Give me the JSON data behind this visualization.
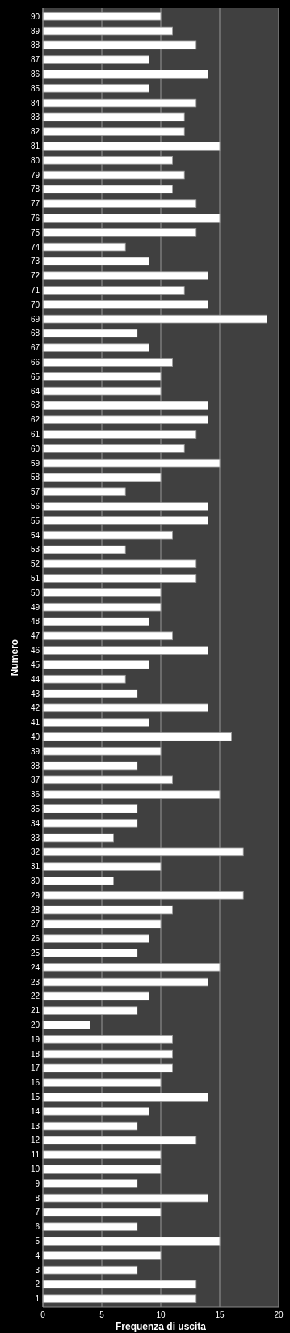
{
  "chart_data": {
    "type": "bar",
    "orientation": "horizontal",
    "xlabel": "Frequenza di uscita",
    "ylabel": "Numero",
    "categories": [
      "90",
      "89",
      "88",
      "87",
      "86",
      "85",
      "84",
      "83",
      "82",
      "81",
      "80",
      "79",
      "78",
      "77",
      "76",
      "75",
      "74",
      "73",
      "72",
      "71",
      "70",
      "69",
      "68",
      "67",
      "66",
      "65",
      "64",
      "63",
      "62",
      "61",
      "60",
      "59",
      "58",
      "57",
      "56",
      "55",
      "54",
      "53",
      "52",
      "51",
      "50",
      "49",
      "48",
      "47",
      "46",
      "45",
      "44",
      "43",
      "42",
      "41",
      "40",
      "39",
      "38",
      "37",
      "36",
      "35",
      "34",
      "33",
      "32",
      "31",
      "30",
      "29",
      "28",
      "27",
      "26",
      "25",
      "24",
      "23",
      "22",
      "21",
      "20",
      "19",
      "18",
      "17",
      "16",
      "15",
      "14",
      "13",
      "12",
      "11",
      "10",
      "9",
      "8",
      "7",
      "6",
      "5",
      "4",
      "3",
      "2",
      "1"
    ],
    "values": [
      10,
      11,
      13,
      9,
      14,
      9,
      13,
      12,
      12,
      15,
      11,
      12,
      11,
      13,
      15,
      13,
      7,
      9,
      14,
      12,
      14,
      19,
      8,
      9,
      11,
      10,
      10,
      14,
      14,
      13,
      12,
      15,
      10,
      7,
      14,
      14,
      11,
      7,
      13,
      13,
      10,
      10,
      9,
      11,
      14,
      9,
      7,
      8,
      14,
      9,
      16,
      10,
      8,
      11,
      15,
      8,
      8,
      6,
      17,
      10,
      6,
      17,
      11,
      10,
      9,
      8,
      15,
      14,
      9,
      8,
      4,
      11,
      11,
      11,
      10,
      14,
      9,
      8,
      13,
      10,
      10,
      8,
      14,
      10,
      8,
      15,
      10,
      8,
      13,
      13
    ],
    "color": "#ffffff",
    "xlim": [
      0,
      20
    ],
    "xticks": [
      0,
      5,
      10,
      15,
      20
    ],
    "grid": "x"
  }
}
